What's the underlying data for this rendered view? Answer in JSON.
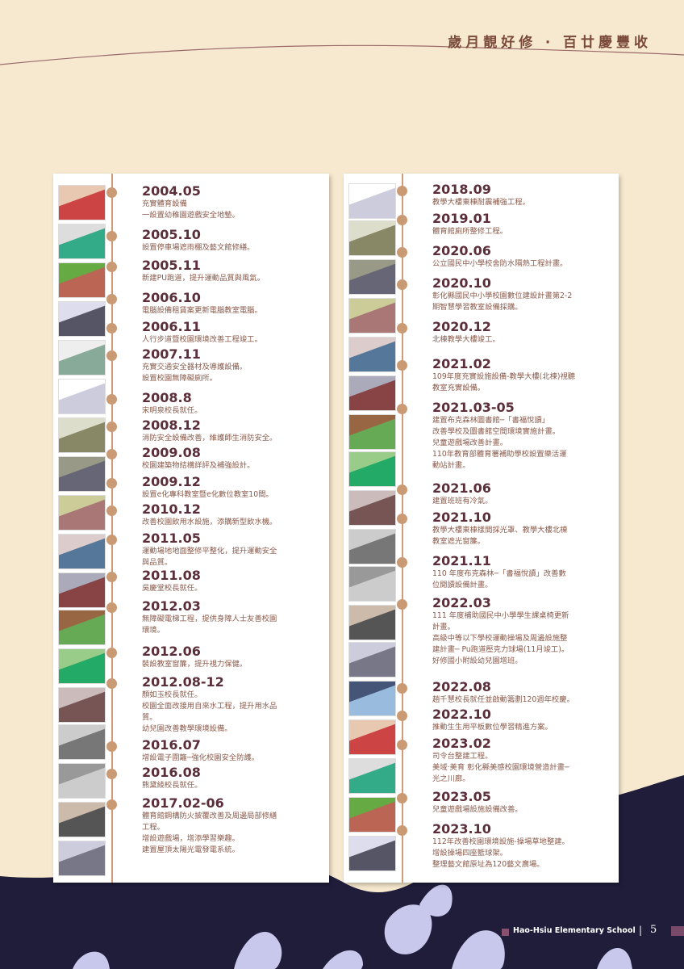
{
  "header": {
    "title": "歲月靚好修 ‧ 百廿慶豐收"
  },
  "left_column": [
    {
      "date": "2004.05",
      "lines": [
        "充實體育設備",
        "一設置幼稚園遊戲安全地墊。"
      ]
    },
    {
      "date": "2005.10",
      "lines": [
        "設置停車場遮雨棚及藝文館修繕。"
      ]
    },
    {
      "date": "2005.11",
      "lines": [
        "新建PU跑道，提升運動品質與風氣。"
      ]
    },
    {
      "date": "2006.10",
      "lines": [
        "電腦設備租賃案更新電腦教室電腦。"
      ]
    },
    {
      "date": "2006.11",
      "lines": [
        "人行步道暨校園環境改善工程竣工。"
      ]
    },
    {
      "date": "2007.11",
      "lines": [
        "充實交通安全器材及導護設備。",
        "設置校園無障礙廁所。"
      ]
    },
    {
      "date": "2008.8",
      "lines": [
        "宋明泉校長就任。"
      ]
    },
    {
      "date": "2008.12",
      "lines": [
        "消防安全設備改善，維護師生消防安全。"
      ]
    },
    {
      "date": "2009.08",
      "lines": [
        "校園建築物結構詳評及補強設計。"
      ]
    },
    {
      "date": "2009.12",
      "lines": [
        "設置e化專科教室暨e化數位教室10間。"
      ]
    },
    {
      "date": "2010.12",
      "lines": [
        "改善校園飲用水設施，添購新型飲水機。"
      ]
    },
    {
      "date": "2011.05",
      "lines": [
        "運動場地地面整修平整化，提升運動安全",
        "與品質。"
      ]
    },
    {
      "date": "2011.08",
      "lines": [
        "吳慶堂校長就任。"
      ]
    },
    {
      "date": "2012.03",
      "lines": [
        "無障礙電梯工程，提供身障人士友善校園",
        "環境。"
      ]
    },
    {
      "date": "2012.06",
      "lines": [
        "裝設教室窗簾，提升視力保健。"
      ]
    },
    {
      "date": "2012.08-12",
      "lines": [
        "顏如玉校長就任。",
        "校園全面改接用自來水工程，提升用水品",
        "質。",
        "幼兒園改善教學環境設備。"
      ]
    },
    {
      "date": "2016.07",
      "lines": [
        "增設電子圍籬─強化校園安全防護。"
      ]
    },
    {
      "date": "2016.08",
      "lines": [
        "熊黛綾校長就任。"
      ]
    },
    {
      "date": "2017.02-06",
      "lines": [
        "體育館鋼構防火披覆改善及周邊局部修繕",
        "工程。",
        "增設遊戲場，增添學習樂趣。",
        "建置屋頂太陽光電發電系統。"
      ]
    }
  ],
  "right_column": [
    {
      "date": "2018.09",
      "lines": [
        "教學大樓東棟耐震補強工程。"
      ]
    },
    {
      "date": "2019.01",
      "lines": [
        "體育館廁所整修工程。"
      ]
    },
    {
      "date": "2020.06",
      "lines": [
        "公立國民中小學校舍防水隔熱工程計畫。"
      ]
    },
    {
      "date": "2020.10",
      "lines": [
        "彰化縣國民中小學校園數位建設計畫第2-2",
        "期智慧學習教室設備採購。"
      ]
    },
    {
      "date": "2020.12",
      "lines": [
        "北棟教學大樓竣工。"
      ]
    },
    {
      "date": "2021.02",
      "lines": [
        "109年度充實設施設備-教學大樓(北棟)視聽",
        "教室充實設備。"
      ]
    },
    {
      "date": "2021.03-05",
      "lines": [
        "建置布克森林圖書館─「書福悅讀」",
        "改善學校及圖書館空間環境實施計畫。",
        "兒童遊戲場改善計畫。",
        "110年教育部體育署補助學校設置樂活運",
        "動站計畫。"
      ]
    },
    {
      "date": "2021.06",
      "lines": [
        "建置班班有冷氣。"
      ]
    },
    {
      "date": "2021.10",
      "lines": [
        "教學大樓東棟樣間採光罩、教學大樓北棟",
        "教室遮光窗簾。"
      ]
    },
    {
      "date": "2021.11",
      "lines": [
        "110 年度布克森林─「書福悅讀」改善數",
        "位閱讀設備計畫。"
      ]
    },
    {
      "date": "2022.03",
      "lines": [
        "111 年度補助國民中小學學生課桌椅更新",
        "計畫。",
        "高級中等以下學校運動操場及周邊設施整",
        "建計畫─ Pu跑道壓克力球場(11月竣工)。",
        "好修國小附設幼兒園增班。"
      ]
    },
    {
      "date": "2022.08",
      "lines": [
        "趙千慧校長就任並啟動籌劃120週年校慶。"
      ]
    },
    {
      "date": "2022.10",
      "lines": [
        "推動生生用平板數位學習精進方案。"
      ]
    },
    {
      "date": "2023.02",
      "lines": [
        "司令台整建工程。",
        "美域‧美育 彰化縣美感校園環境營造計畫─",
        "光之川廊。"
      ]
    },
    {
      "date": "2023.05",
      "lines": [
        "兒童遊戲場設施設備改善。"
      ]
    },
    {
      "date": "2023.10",
      "lines": [
        "112年改善校園環境設施-操場草地整建。",
        "增設操場四座籃球架。",
        "整理藝文館原址為120藝文廣場。"
      ]
    }
  ],
  "footer": {
    "school": "Hao-Hsiu Elementary School",
    "separator": "|",
    "page": "5"
  },
  "colors": {
    "background": "#f7e9cf",
    "date": "#5a2e3a",
    "desc": "#8a5a4a",
    "dot": "#c99a74",
    "navy": "#1f1d3a",
    "accent": "#7a4a6a"
  }
}
